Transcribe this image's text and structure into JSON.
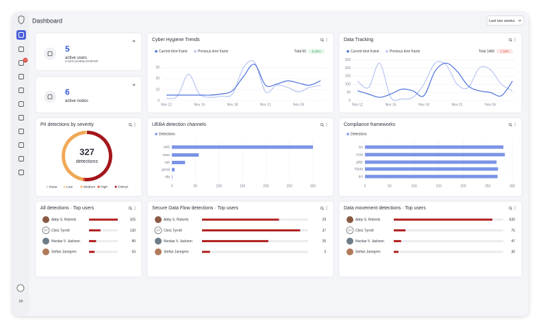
{
  "header": {
    "title": "Dashboard",
    "range": "Last two weeks"
  },
  "nav_badge": "12",
  "stats": [
    {
      "value": "5",
      "label": "active users",
      "note": "3 users pending enrollment"
    },
    {
      "value": "6",
      "label": "active nodes"
    }
  ],
  "chart_data": [
    {
      "type": "line",
      "title": "Cyber Hygiene Trends",
      "total": "Total 60",
      "change": "6.16%",
      "categories": [
        "Nov 12",
        null,
        null,
        "Nov 15",
        null,
        null,
        "Nov 18",
        null,
        null,
        "Nov 21",
        null,
        null,
        "Nov 24",
        null,
        null
      ],
      "series": [
        {
          "name": "Current time frame",
          "color": "#4a6fdc",
          "values": [
            5,
            5,
            5,
            5,
            5,
            6,
            9,
            22,
            33,
            14,
            15,
            18,
            16,
            14,
            18
          ]
        },
        {
          "name": "Previous time frame",
          "color": "#b7c4f2",
          "values": [
            2,
            4,
            24,
            6,
            3,
            4,
            6,
            30,
            35,
            8,
            14,
            12,
            8,
            12,
            14
          ]
        }
      ],
      "ylim": [
        0,
        38
      ],
      "yticks": [
        0,
        10,
        20,
        30
      ]
    },
    {
      "type": "line",
      "title": "Data Tracking",
      "total": "Total 1466",
      "change": "7.18%",
      "categories": [
        "Nov 12",
        null,
        null,
        "Nov 15",
        null,
        null,
        "Nov 18",
        null,
        null,
        "Nov 21",
        null,
        null,
        "Nov 24",
        null,
        null
      ],
      "series": [
        {
          "name": "Current time frame",
          "color": "#4a6fdc",
          "values": [
            60,
            40,
            20,
            40,
            70,
            60,
            30,
            180,
            230,
            180,
            90,
            60,
            50,
            30,
            120
          ]
        },
        {
          "name": "Previous time frame",
          "color": "#b7c4f2",
          "values": [
            120,
            80,
            230,
            20,
            10,
            20,
            100,
            230,
            220,
            100,
            80,
            200,
            190,
            100,
            60
          ]
        }
      ],
      "ylim": [
        0,
        265
      ],
      "yticks": [
        0,
        50,
        100,
        150,
        200,
        250
      ]
    },
    {
      "type": "pie",
      "title": "PII detections by severity",
      "total": "327",
      "total_label": "detections",
      "categories": [
        "None",
        "Low",
        "Medium",
        "High",
        "Critical"
      ],
      "values": [
        0,
        3,
        152,
        4,
        168
      ],
      "colors": [
        "#d9d9d9",
        "#f6d08a",
        "#f0a957",
        "#d9452b",
        "#a4161a"
      ]
    },
    {
      "type": "hbar",
      "title": "UEBA detection channels",
      "categories": [
        "web",
        "saas",
        "ssh",
        "gmail",
        "rdp"
      ],
      "series": [
        {
          "name": "Detections",
          "color": "#7b93e6",
          "values": [
            300,
            57,
            28,
            6,
            1
          ]
        }
      ],
      "xlim": [
        0,
        300
      ],
      "xticks": [
        0,
        50,
        100,
        150,
        200,
        250,
        300
      ]
    },
    {
      "type": "hbar",
      "title": "Compliance frameworks",
      "categories": [
        "iso",
        "ccpa",
        "gdpr",
        "hipaa",
        "pci"
      ],
      "series": [
        {
          "name": "Detections",
          "color": "#7b93e6",
          "values": [
            282,
            285,
            268,
            271,
            270
          ]
        }
      ],
      "xlim": [
        0,
        300
      ],
      "xticks": [
        0,
        50,
        100,
        150,
        200,
        250,
        300
      ]
    },
    {
      "type": "toplist",
      "title": "All detections · Top users",
      "categories": [
        "Abby S. Roberts",
        "Chris Tyrrell",
        "Nicolas V. Jackson",
        "Stefan Janegren"
      ],
      "initials": [
        null,
        "CT",
        null,
        null
      ],
      "values": [
        325,
        130,
        80,
        63
      ],
      "xlim": [
        0,
        325
      ],
      "color": "#b01c1c"
    },
    {
      "type": "toplist",
      "title": "Secure Data Flow detections · Top users",
      "categories": [
        "Abby S. Roberts",
        "Chris Tyrrell",
        "Nicolas V. Jackson",
        "Stefan Janegren"
      ],
      "initials": [
        null,
        "CT",
        null,
        null
      ],
      "values": [
        29,
        37,
        25,
        3
      ],
      "xlim": [
        0,
        40
      ],
      "color": "#b01c1c"
    },
    {
      "type": "toplist",
      "title": "Data movement detections · Top users",
      "categories": [
        "Abby S. Roberts",
        "Chris Tyrrell",
        "Nicolas V. Jackson",
        "Stefan Janegren"
      ],
      "initials": [
        null,
        "CT",
        null,
        null
      ],
      "values": [
        630,
        75,
        47,
        30
      ],
      "xlim": [
        0,
        700
      ],
      "color": "#b01c1c"
    }
  ]
}
